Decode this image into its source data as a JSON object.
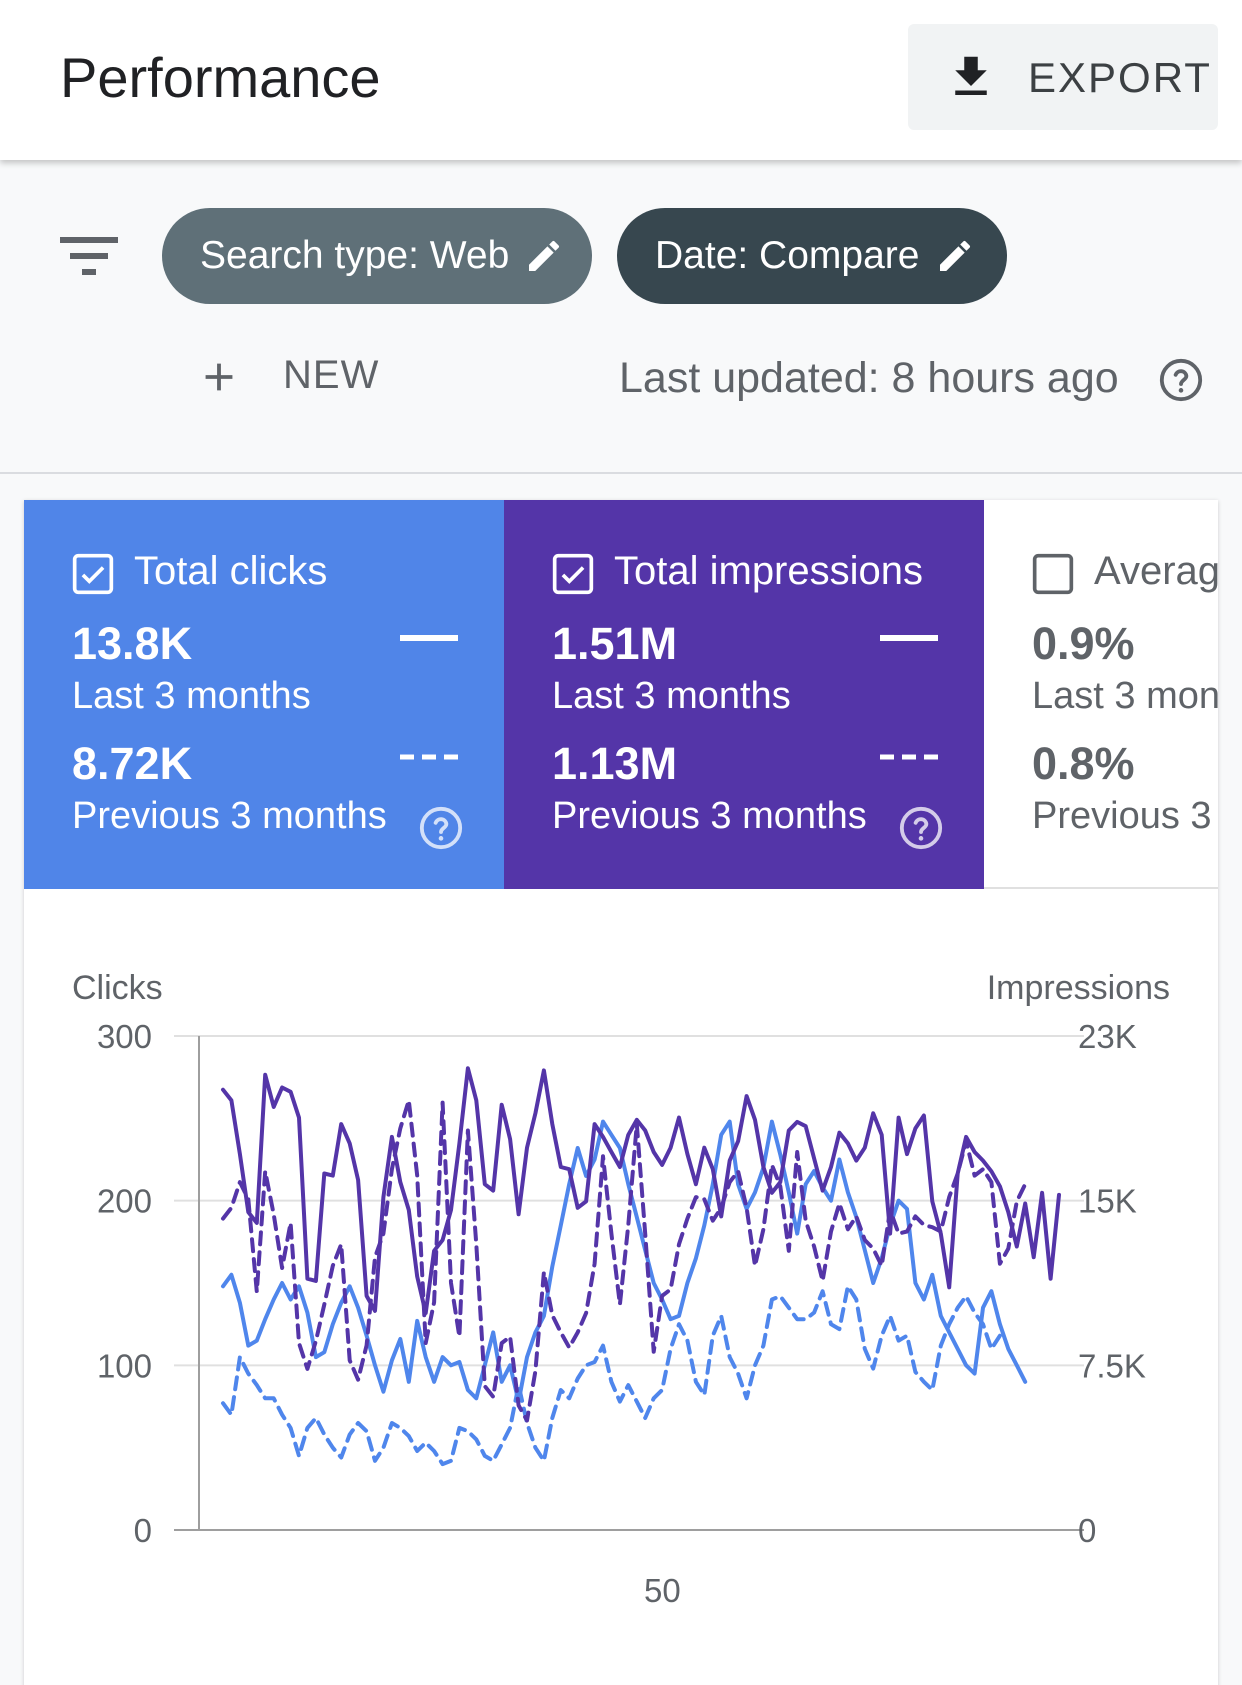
{
  "header": {
    "title": "Performance",
    "export_label": "EXPORT",
    "export_icon": "download-icon"
  },
  "filters": {
    "filter_icon": "filter-list-icon",
    "chips": [
      {
        "label": "Search type: Web",
        "color": "#5f7078",
        "icon": "edit-icon"
      },
      {
        "label": "Date: Compare",
        "color": "#37474f",
        "icon": "edit-icon"
      }
    ],
    "new_label": "NEW",
    "last_updated": "Last updated: 8 hours ago"
  },
  "metrics": [
    {
      "name": "Total clicks",
      "checked": true,
      "color": "#5085e8",
      "current_value": "13.8K",
      "current_period": "Last 3 months",
      "previous_value": "8.72K",
      "previous_period": "Previous 3 months"
    },
    {
      "name": "Total impressions",
      "checked": true,
      "color": "#5435a8",
      "current_value": "1.51M",
      "current_period": "Last 3 months",
      "previous_value": "1.13M",
      "previous_period": "Previous 3 months"
    },
    {
      "name": "Averag",
      "checked": false,
      "current_value": "0.9%",
      "current_period": "Last 3 mon",
      "previous_value": "0.8%",
      "previous_period": "Previous 3"
    }
  ],
  "chart_data": {
    "type": "line",
    "left_axis": {
      "label": "Clicks",
      "ticks": [
        "0",
        "100",
        "200",
        "300"
      ],
      "range": [
        0,
        300
      ]
    },
    "right_axis": {
      "label": "Impressions",
      "ticks": [
        "0",
        "7.5K",
        "15K",
        "23K"
      ],
      "range": [
        0,
        23000
      ]
    },
    "x_axis": {
      "ticks": [
        "50"
      ],
      "range": [
        0,
        91
      ]
    },
    "grid": true,
    "series": [
      {
        "axis": "left",
        "style": "solid",
        "color": "#4f86ec",
        "values": [
          148,
          155,
          138,
          112,
          115,
          128,
          140,
          150,
          140,
          148,
          132,
          105,
          108,
          125,
          138,
          148,
          135,
          118,
          100,
          84,
          103,
          116,
          90,
          127,
          105,
          90,
          105,
          100,
          102,
          85,
          80,
          100,
          120,
          90,
          100,
          78,
          105,
          120,
          130,
          160,
          185,
          210,
          232,
          215,
          225,
          248,
          240,
          232,
          210,
          190,
          170,
          150,
          140,
          128,
          130,
          150,
          165,
          185,
          210,
          240,
          248,
          210,
          195,
          205,
          220,
          248,
          228,
          205,
          180,
          210,
          218,
          208,
          200,
          225,
          205,
          190,
          170,
          150,
          165,
          185,
          200,
          195,
          150,
          140,
          155,
          130,
          120,
          110,
          100,
          95,
          135,
          145,
          125,
          110,
          100,
          90
        ]
      },
      {
        "axis": "left",
        "style": "dashed",
        "color": "#4f86ec",
        "values": [
          77,
          70,
          105,
          95,
          88,
          80,
          80,
          70,
          62,
          45,
          62,
          68,
          58,
          50,
          44,
          58,
          65,
          60,
          42,
          50,
          65,
          62,
          57,
          48,
          53,
          48,
          40,
          42,
          62,
          60,
          55,
          45,
          42,
          52,
          62,
          88,
          65,
          50,
          42,
          68,
          85,
          80,
          92,
          100,
          102,
          112,
          90,
          78,
          88,
          78,
          68,
          80,
          85,
          110,
          125,
          115,
          90,
          82,
          118,
          130,
          105,
          95,
          80,
          100,
          112,
          140,
          142,
          135,
          128,
          128,
          132,
          145,
          125,
          122,
          148,
          140,
          110,
          98,
          118,
          130,
          115,
          118,
          96,
          90,
          85,
          112,
          125,
          135,
          142,
          132,
          125,
          110,
          118
        ]
      },
      {
        "axis": "right",
        "style": "solid",
        "color": "#5435a8",
        "values": [
          20500,
          20000,
          17500,
          14800,
          14300,
          21200,
          19700,
          20600,
          20400,
          19200,
          11700,
          11600,
          16600,
          16500,
          18900,
          18000,
          16300,
          10900,
          10200,
          15500,
          18300,
          16200,
          14900,
          11800,
          10100,
          13000,
          13500,
          14900,
          18000,
          21500,
          20000,
          16100,
          15800,
          19800,
          18200,
          14700,
          17800,
          19400,
          21400,
          18900,
          16900,
          16800,
          15000,
          15300,
          18900,
          18300,
          17600,
          16900,
          18400,
          19100,
          18600,
          17600,
          17000,
          17800,
          19200,
          17500,
          16100,
          17800,
          16800,
          14600,
          17200,
          18100,
          20200,
          19100,
          16900,
          15700,
          16200,
          18600,
          19000,
          18800,
          17300,
          15800,
          16900,
          18500,
          18000,
          17200,
          17800,
          19400,
          18400,
          13800,
          19200,
          17500,
          18700,
          19300,
          15300,
          13800,
          11300,
          16600,
          18300,
          17600,
          17200,
          16700,
          16000,
          14800,
          13200,
          15200,
          12700,
          15700,
          11700,
          15600
        ]
      },
      {
        "axis": "right",
        "style": "dashed",
        "color": "#5435a8",
        "values": [
          14500,
          15000,
          16200,
          15400,
          11100,
          16700,
          14700,
          12200,
          14300,
          8700,
          7500,
          8800,
          10500,
          12300,
          13300,
          7900,
          7000,
          8600,
          12700,
          13800,
          16800,
          18700,
          20000,
          16500,
          8700,
          10600,
          19900,
          11500,
          9000,
          18600,
          13300,
          6700,
          6200,
          8700,
          9000,
          5800,
          5100,
          7400,
          12000,
          10000,
          9200,
          8500,
          9200,
          10100,
          12400,
          17400,
          13800,
          10500,
          14200,
          18900,
          13800,
          8300,
          10900,
          11200,
          13300,
          14500,
          15500,
          15400,
          14400,
          15000,
          16200,
          16700,
          15000,
          12300,
          14000,
          17000,
          16000,
          13000,
          17600,
          14400,
          13200,
          11600,
          13900,
          15200,
          14000,
          14600,
          13500,
          13100,
          12300,
          14900,
          13800,
          13900,
          14600,
          14200,
          14100,
          13900,
          15500,
          16600,
          18100,
          16500,
          16800,
          16200,
          12400,
          13100,
          15300,
          16100
        ]
      }
    ]
  }
}
